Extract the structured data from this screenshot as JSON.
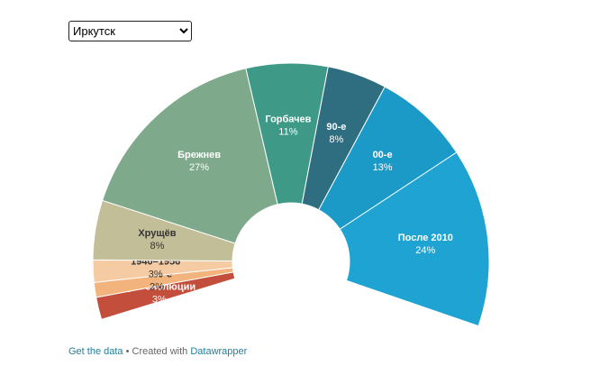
{
  "controls": {
    "city": "Иркутск"
  },
  "chart_data": {
    "type": "semi-donut",
    "categories": [
      "До Революции",
      "1930-е",
      "1940–1956",
      "Хрущёв",
      "Брежнев",
      "Горбачев",
      "90-е",
      "00-е",
      "После 2010"
    ],
    "values": [
      3,
      2,
      3,
      8,
      27,
      11,
      8,
      13,
      24
    ],
    "value_labels": [
      "3%",
      "2%",
      "3%",
      "8%",
      "27%",
      "11%",
      "8%",
      "13%",
      "24%"
    ],
    "colors": [
      "#c44e3c",
      "#f2b47c",
      "#f5cba3",
      "#c2bf98",
      "#7ea98a",
      "#3e9986",
      "#2e6e80",
      "#1b9ac8",
      "#1ea3d2"
    ]
  },
  "footer": {
    "get_data": "Get the data",
    "separator": "• Created with",
    "brand": "Datawrapper"
  }
}
